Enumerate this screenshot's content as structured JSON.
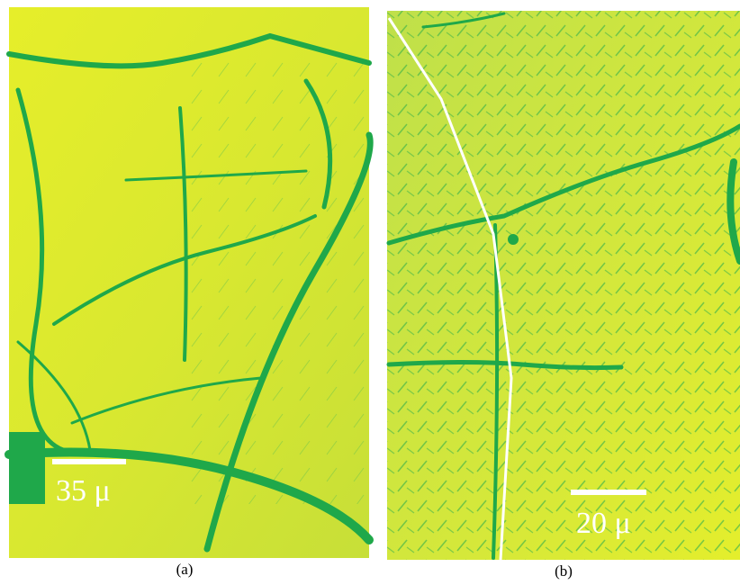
{
  "panels": [
    {
      "label": "(a)",
      "scale_bar": "35 μ"
    },
    {
      "label": "(b)",
      "scale_bar": "20 μ"
    }
  ]
}
